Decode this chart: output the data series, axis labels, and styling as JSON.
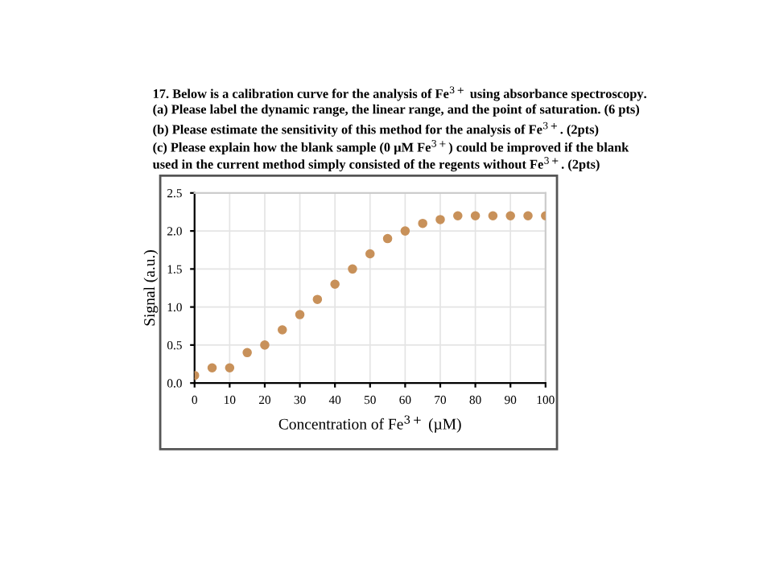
{
  "chart_data": {
    "type": "scatter",
    "title": "17. Below is a calibration curve for the analysis of Fe$^{3+}$ using absorbance spectroscopy.",
    "annotations": [
      "(a) Please label the dynamic range, the linear range, and the point of saturation. (6 pts)",
      "(b) Please estimate the sensitivity of this method for the analysis of Fe$^{3+}$. (2pts)",
      "(c) Please explain how the blank sample (0 µM Fe$^{3+}$) could be improved if the blank used in the current method simply consisted of the regents without Fe$^{3+}$. (2pts)"
    ],
    "xlabel": "Concentration of Fe$^{3+}$ (µM)",
    "ylabel": "Signal (a.u.)",
    "x": [
      0,
      5,
      10,
      15,
      20,
      25,
      30,
      35,
      40,
      45,
      50,
      55,
      60,
      65,
      70,
      75,
      80,
      85,
      90,
      95,
      100
    ],
    "series": [
      {
        "color": "#c8915a",
        "values": [
          0.1,
          0.2,
          0.2,
          0.4,
          0.5,
          0.7,
          0.9,
          1.1,
          1.3,
          1.5,
          1.7,
          1.9,
          2.0,
          2.1,
          2.15,
          2.2,
          2.2,
          2.2,
          2.2,
          2.2,
          2.2
        ]
      }
    ],
    "xlim": [
      0,
      100
    ],
    "xticks": [
      0,
      10,
      20,
      30,
      40,
      50,
      60,
      70,
      80,
      90,
      100
    ],
    "ylim": [
      0,
      2.5
    ],
    "yticks": [
      {
        "value": 0,
        "label": "0.0"
      },
      0.5,
      {
        "value": 1,
        "label": "1.0"
      },
      1.5,
      {
        "value": 2,
        "label": "2.0"
      },
      2.5
    ],
    "grid": true,
    "marker": "circle",
    "legend": false
  }
}
